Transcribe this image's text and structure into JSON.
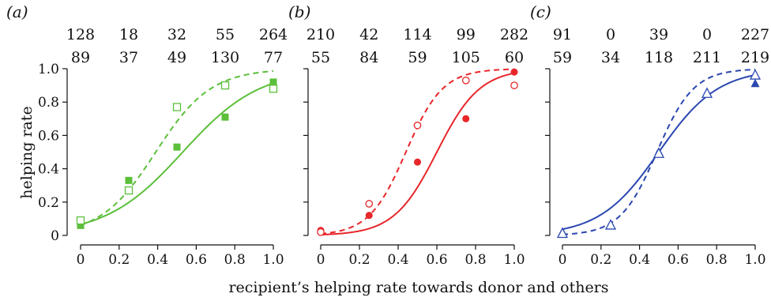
{
  "figure": {
    "xlabel": "recipient’s helping rate towards donor and others",
    "ylabel": "helping rate"
  },
  "chart_data": [
    {
      "type": "scatter",
      "panel_label": "(a)",
      "color": "#5cbf3a",
      "marker": "square",
      "xlim": [
        0,
        1
      ],
      "ylim": [
        0,
        1
      ],
      "x_ticks": [
        "0",
        "0.2",
        "0.4",
        "0.6",
        "0.8",
        "1.0"
      ],
      "y_ticks": [
        "0",
        "0.2",
        "0.4",
        "0.6",
        "0.8",
        "1.0"
      ],
      "counts_top": [
        "128",
        "18",
        "32",
        "55",
        "264"
      ],
      "counts_bottom": [
        "89",
        "37",
        "49",
        "130",
        "77"
      ],
      "series": [
        {
          "style": "filled",
          "line": "solid",
          "x": [
            0,
            0.25,
            0.5,
            0.75,
            1.0
          ],
          "y": [
            0.06,
            0.33,
            0.53,
            0.71,
            0.92
          ],
          "fit": {
            "L": 1.0,
            "k": 5.0,
            "x0": 0.53
          }
        },
        {
          "style": "open",
          "line": "dashed",
          "x": [
            0,
            0.25,
            0.5,
            0.75,
            1.0
          ],
          "y": [
            0.09,
            0.27,
            0.77,
            0.9,
            0.88
          ],
          "fit": {
            "L": 1.0,
            "k": 7.0,
            "x0": 0.39
          }
        }
      ]
    },
    {
      "type": "scatter",
      "panel_label": "(b)",
      "color": "#e8262a",
      "marker": "circle",
      "xlim": [
        0,
        1
      ],
      "ylim": [
        0,
        1
      ],
      "x_ticks": [
        "0",
        "0.2",
        "0.4",
        "0.6",
        "0.8",
        "1.0"
      ],
      "counts_top": [
        "210",
        "42",
        "114",
        "99",
        "282"
      ],
      "counts_bottom": [
        "55",
        "84",
        "59",
        "105",
        "60"
      ],
      "series": [
        {
          "style": "filled",
          "line": "solid",
          "x": [
            0,
            0.25,
            0.5,
            0.75,
            1.0
          ],
          "y": [
            0.03,
            0.12,
            0.44,
            0.7,
            0.98
          ],
          "fit": {
            "L": 1.0,
            "k": 9.0,
            "x0": 0.6
          }
        },
        {
          "style": "open",
          "line": "dashed",
          "x": [
            0,
            0.25,
            0.5,
            0.75,
            1.0
          ],
          "y": [
            0.02,
            0.19,
            0.66,
            0.93,
            0.9
          ],
          "fit": {
            "L": 1.0,
            "k": 10.5,
            "x0": 0.44
          }
        }
      ]
    },
    {
      "type": "scatter",
      "panel_label": "(c)",
      "color": "#2b47b0",
      "marker": "triangle",
      "xlim": [
        0,
        1
      ],
      "ylim": [
        0,
        1
      ],
      "x_ticks": [
        "0",
        "0.2",
        "0.4",
        "0.6",
        "0.8",
        "1.0"
      ],
      "counts_top": [
        "91",
        "0",
        "39",
        "0",
        "227"
      ],
      "counts_bottom": [
        "59",
        "34",
        "118",
        "211",
        "219"
      ],
      "series": [
        {
          "style": "filled",
          "line": "solid",
          "x": [
            0,
            0.5,
            1.0
          ],
          "y": [
            0.02,
            0.5,
            0.91
          ],
          "fit": {
            "L": 1.0,
            "k": 6.5,
            "x0": 0.5
          }
        },
        {
          "style": "open",
          "line": "dashed",
          "x": [
            0,
            0.25,
            0.5,
            0.75,
            1.0
          ],
          "y": [
            0.01,
            0.06,
            0.49,
            0.85,
            0.96
          ],
          "fit": {
            "L": 1.0,
            "k": 10.5,
            "x0": 0.49
          }
        }
      ]
    }
  ]
}
